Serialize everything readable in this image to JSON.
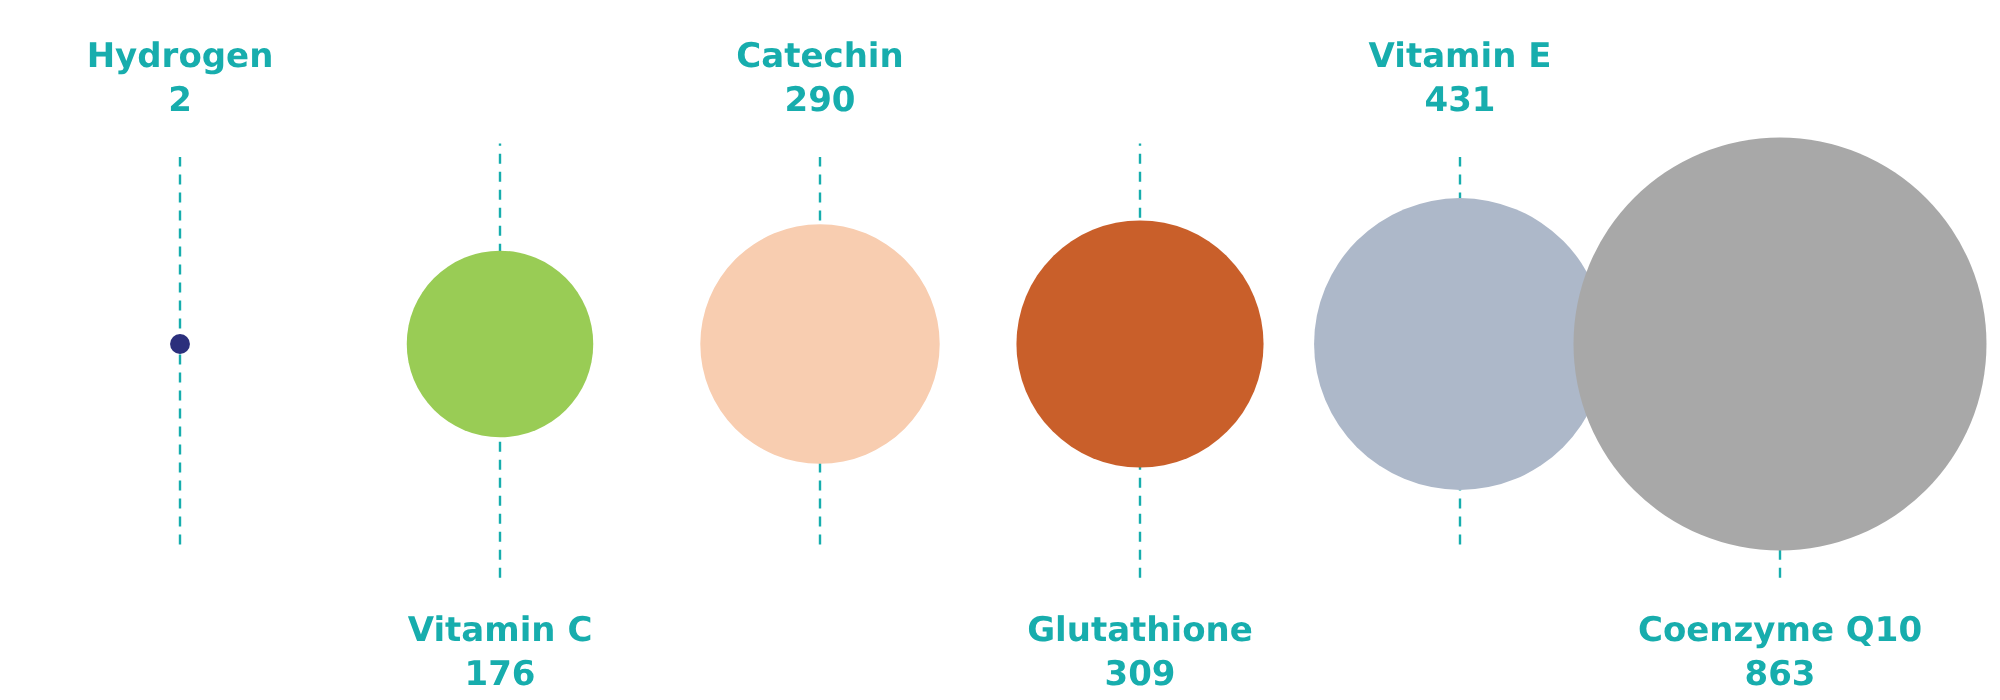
{
  "chart_data": {
    "type": "other",
    "categories": [
      "Hydrogen",
      "Vitamin C",
      "Catechin",
      "Glutathione",
      "Vitamin E",
      "Coenzyme Q10"
    ],
    "values": [
      2,
      176,
      290,
      309,
      431,
      863
    ],
    "colors": [
      "#2b2f7c",
      "#99cc55",
      "#f8cdb0",
      "#c95f2a",
      "#adb8c9",
      "#a8a8a8"
    ],
    "data_labels": true
  }
}
